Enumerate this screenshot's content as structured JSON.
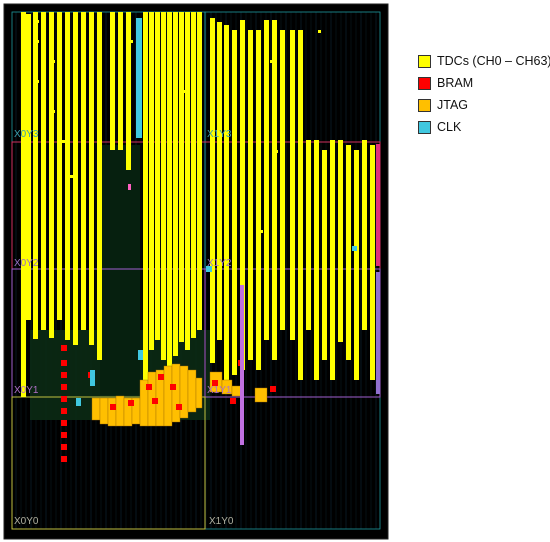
{
  "legend": {
    "tdc_label": "TDCs (CH0 – CH63)",
    "bram_label": "BRAM",
    "jtag_label": "JTAG",
    "clk_label": "CLK"
  },
  "colors": {
    "tdc": "#ffff00",
    "bram": "#ff0000",
    "jtag": "#ffbf00",
    "clk": "#40c8e0",
    "die_background": "#000000",
    "region_border": "#1e9aa0"
  },
  "clock_regions": {
    "x0y3": "X0Y3",
    "x1y3": "X1Y3",
    "x0y2": "X0Y2",
    "x1y2": "X1Y2",
    "x0y1": "X0Y1",
    "x1y1": "X1Y1",
    "x0y0": "X0Y0",
    "x1y0": "X1Y0"
  }
}
